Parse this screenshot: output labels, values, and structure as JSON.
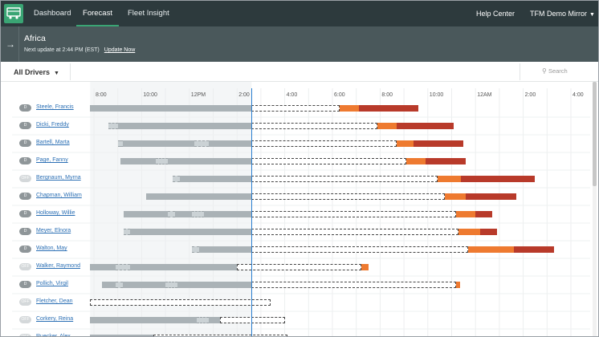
{
  "nav": {
    "logo_icon": "truck-icon",
    "tabs": [
      {
        "label": "Dashboard",
        "active": false
      },
      {
        "label": "Forecast",
        "active": true
      },
      {
        "label": "Fleet Insight",
        "active": false
      }
    ],
    "help": "Help Center",
    "account": "TFM Demo Mirror"
  },
  "header": {
    "region": "Africa",
    "next_update": "Next update at 2:44 PM (EST)",
    "update_now": "Update Now"
  },
  "toolbar": {
    "filter": "All Drivers",
    "search_placeholder": "Search"
  },
  "timeline": {
    "ticks": [
      "8:00",
      "10:00",
      "12PM",
      "2:00",
      "4:00",
      "6:00",
      "8:00",
      "10:00",
      "12AM",
      "2:00",
      "4:00"
    ],
    "start_hour": 7.84,
    "now_hour": 14.61
  },
  "colors": {
    "driving": "#aab2b6",
    "break": "#cbd2d5",
    "forecast_border": "#444444",
    "warning": "#ee7a30",
    "violation": "#b83a2a",
    "now_line": "#2b7fd0"
  },
  "drivers": [
    {
      "status": "D",
      "name": "Steele, Francis",
      "start": 7.84,
      "breaks": [],
      "hist_end": 14.61,
      "fc_end": 18.3,
      "warn_end": 19.1,
      "viol_end": 21.6
    },
    {
      "status": "D",
      "name": "Dicki, Freddy",
      "start": 8.6,
      "breaks": [
        [
          8.6,
          9.0
        ]
      ],
      "hist_end": 14.61,
      "fc_end": 19.9,
      "warn_end": 20.7,
      "viol_end": 23.1
    },
    {
      "status": "D",
      "name": "Bartell, Marta",
      "start": 9.0,
      "breaks": [
        [
          9.0,
          9.2
        ],
        [
          12.2,
          12.8
        ]
      ],
      "hist_end": 14.61,
      "fc_end": 20.7,
      "warn_end": 21.4,
      "viol_end": 23.5
    },
    {
      "status": "D",
      "name": "Page, Fanny",
      "start": 9.1,
      "breaks": [
        [
          10.6,
          11.1
        ]
      ],
      "hist_end": 14.61,
      "fc_end": 21.1,
      "warn_end": 21.9,
      "viol_end": 23.6
    },
    {
      "status": "OFF",
      "name": "Bergnaum, Myrna",
      "start": 11.3,
      "breaks": [
        [
          11.3,
          11.6
        ]
      ],
      "hist_end": 14.61,
      "fc_end": 22.4,
      "warn_end": 23.4,
      "viol_end": 26.5
    },
    {
      "status": "D",
      "name": "Chapman, William",
      "start": 10.2,
      "breaks": [],
      "hist_end": 14.61,
      "fc_end": 22.7,
      "warn_end": 23.6,
      "viol_end": 25.7
    },
    {
      "status": "D",
      "name": "Holloway, Willie",
      "start": 9.25,
      "breaks": [
        [
          11.1,
          11.4
        ],
        [
          12.1,
          12.6
        ]
      ],
      "hist_end": 14.61,
      "fc_end": 23.2,
      "warn_end": 24.0,
      "viol_end": 24.7
    },
    {
      "status": "D",
      "name": "Meyer, Elnora",
      "start": 9.25,
      "breaks": [
        [
          9.25,
          9.5
        ]
      ],
      "hist_end": 14.61,
      "fc_end": 23.3,
      "warn_end": 24.2,
      "viol_end": 24.9
    },
    {
      "status": "D",
      "name": "Walton, May",
      "start": 12.1,
      "breaks": [
        [
          12.1,
          12.4
        ]
      ],
      "hist_end": 14.61,
      "fc_end": 23.7,
      "warn_end": 25.6,
      "viol_end": 27.3
    },
    {
      "status": "OFF",
      "name": "Walker, Raymond",
      "start": 7.84,
      "breaks": [
        [
          8.9,
          9.5
        ]
      ],
      "hist_end": 14.0,
      "fc_end": 19.2,
      "warn_end": 19.5,
      "viol_end": 19.5
    },
    {
      "status": "D",
      "name": "Pollich, Virgil",
      "start": 8.35,
      "breaks": [
        [
          8.9,
          9.2
        ],
        [
          11.0,
          11.5
        ]
      ],
      "hist_end": 14.61,
      "fc_end": 23.2,
      "warn_end": 23.35,
      "viol_end": 23.35
    },
    {
      "status": "OFF",
      "name": "Fletcher, Dean",
      "start": 7.84,
      "breaks": [
        [
          7.84,
          8.7
        ]
      ],
      "hist_end": 7.84,
      "fc_end": 15.4,
      "warn_end": 15.4,
      "viol_end": 15.4
    },
    {
      "status": "OFF",
      "name": "Corkery, Reina",
      "start": 7.84,
      "breaks": [
        [
          12.3,
          12.8
        ]
      ],
      "hist_end": 13.3,
      "fc_end": 16.0,
      "warn_end": 16.0,
      "viol_end": 16.0
    },
    {
      "status": "OFF",
      "name": "Ruecker, Alex",
      "start": 7.84,
      "breaks": [
        [
          10.5,
          11.0
        ]
      ],
      "hist_end": 10.5,
      "fc_end": 16.1,
      "warn_end": 16.1,
      "viol_end": 16.1
    }
  ]
}
